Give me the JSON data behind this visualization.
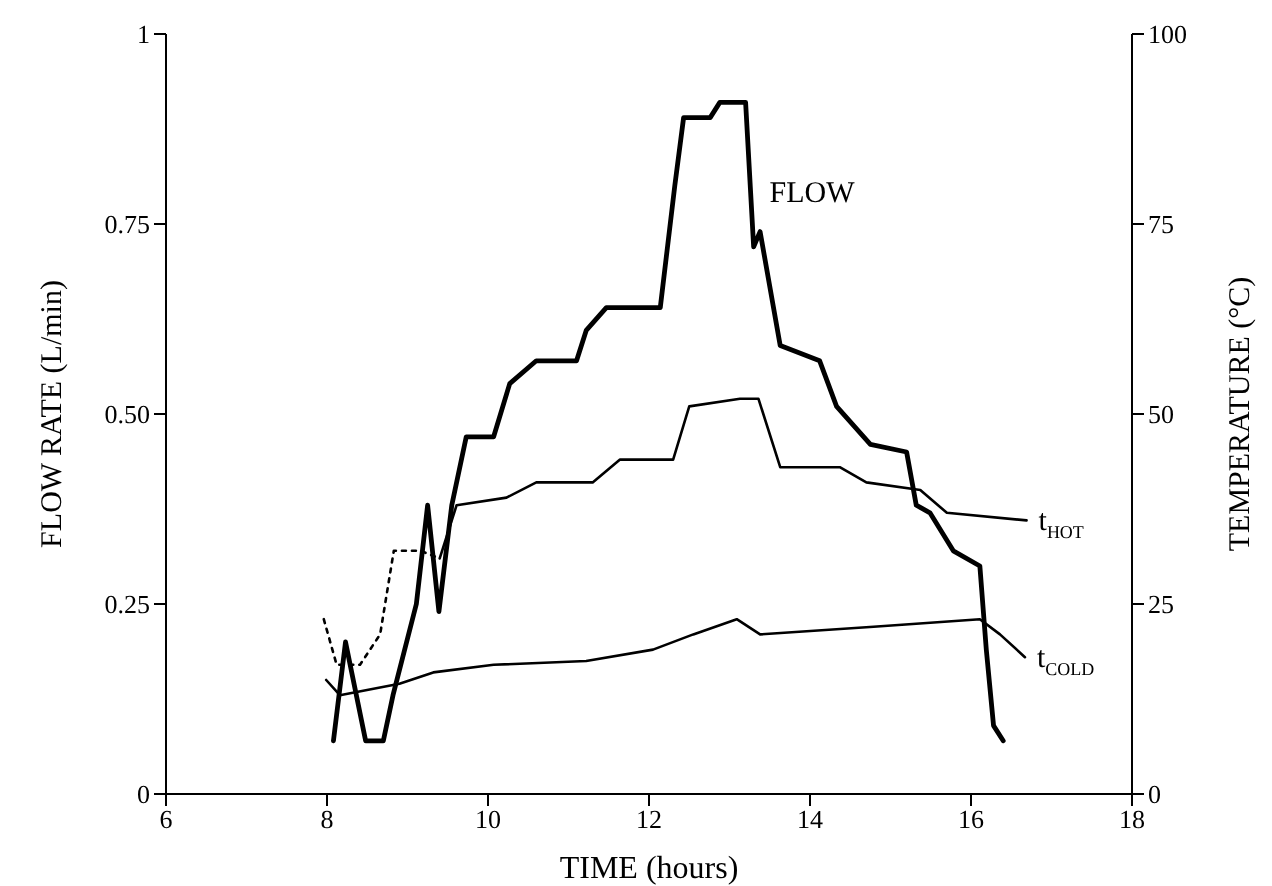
{
  "chart_data": {
    "type": "line",
    "xlabel": "TIME (hours)",
    "ylabel": "FLOW RATE (L/min)",
    "y2label": "TEMPERATURE (°C)",
    "xlim": [
      6,
      18
    ],
    "xticks": [
      6,
      8,
      10,
      12,
      14,
      16,
      18
    ],
    "ylim": [
      0,
      1
    ],
    "yticks": [
      0,
      0.25,
      {
        "value": 0.5,
        "label": "0.50"
      },
      0.75,
      1
    ],
    "y2lim": [
      0,
      100
    ],
    "y2ticks": [
      0,
      25,
      50,
      75,
      100
    ],
    "marker": "none",
    "series": [
      {
        "name": "FLOW",
        "color": "#000000",
        "axis": "y",
        "line_style": "solid",
        "x": [
          8.08,
          8.23,
          8.48,
          8.7,
          8.82,
          9.11,
          9.25,
          9.39,
          9.55,
          9.73,
          10.07,
          10.27,
          10.6,
          11.1,
          11.22,
          11.47,
          12.14,
          12.32,
          12.43,
          12.76,
          12.88,
          13.2,
          13.3,
          13.38,
          13.63,
          14.12,
          14.33,
          14.75,
          15.2,
          15.32,
          15.49,
          15.78,
          16.11,
          16.19,
          16.28,
          16.4
        ],
        "values": [
          0.07,
          0.2,
          0.07,
          0.07,
          0.13,
          0.25,
          0.38,
          0.24,
          0.38,
          0.47,
          0.47,
          0.54,
          0.57,
          0.57,
          0.61,
          0.64,
          0.64,
          0.8,
          0.89,
          0.89,
          0.91,
          0.91,
          0.72,
          0.74,
          0.59,
          0.57,
          0.51,
          0.46,
          0.45,
          0.38,
          0.37,
          0.32,
          0.3,
          0.19,
          0.09,
          0.07
        ]
      },
      {
        "color": "#000000",
        "axis": "y2",
        "line_style": "dotted",
        "x": [
          7.96,
          8.12,
          8.41,
          8.66,
          8.83,
          9.16,
          9.4
        ],
        "values": [
          23,
          17,
          17,
          21,
          32,
          32,
          31
        ]
      },
      {
        "name": "t$_{HOT}$",
        "color": "#000000",
        "axis": "y2",
        "line_style": "solid",
        "x": [
          9.4,
          9.61,
          10.23,
          10.6,
          11.3,
          11.64,
          12.3,
          12.5,
          13.13,
          13.36,
          13.63,
          14.37,
          14.7,
          15.37,
          15.7,
          16.69
        ],
        "values": [
          31,
          38,
          39,
          41,
          41,
          44,
          44,
          51,
          52,
          52,
          43,
          43,
          41,
          40,
          37,
          36
        ]
      },
      {
        "name": "t$_{COLD}$",
        "color": "#000000",
        "axis": "y2",
        "line_style": "solid",
        "x": [
          7.99,
          8.16,
          8.9,
          9.32,
          10.07,
          11.22,
          12.05,
          12.55,
          13.09,
          13.38,
          14.79,
          16.11,
          16.36,
          16.67
        ],
        "values": [
          15,
          13,
          14.5,
          16,
          17,
          17.5,
          19,
          21,
          23,
          21,
          22,
          23,
          21,
          18
        ]
      }
    ]
  }
}
